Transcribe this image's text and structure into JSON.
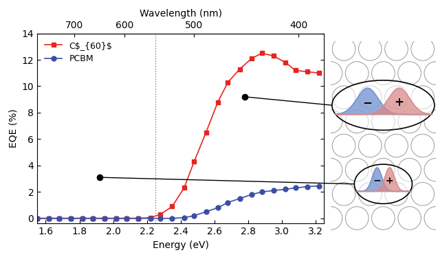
{
  "chart_data": {
    "type": "line",
    "xlabel": "Energy (eV)",
    "ylabel": "EQE (%)",
    "x2label": "Wavelength (nm)",
    "x2ticks": [
      700,
      600,
      500,
      400
    ],
    "x": [
      1.55,
      1.62,
      1.68,
      1.75,
      1.82,
      1.88,
      1.95,
      2.02,
      2.08,
      2.15,
      2.22,
      2.28,
      2.35,
      2.42,
      2.48,
      2.55,
      2.62,
      2.68,
      2.75,
      2.82,
      2.88,
      2.95,
      3.02,
      3.08,
      3.15,
      3.22
    ],
    "series": [
      {
        "name": "C$_{60}$",
        "color": "#e8241f",
        "marker": "square",
        "line_style": "solid",
        "values": [
          0,
          0,
          0,
          0,
          0,
          0,
          0,
          0,
          0,
          0,
          0.05,
          0.3,
          0.9,
          2.3,
          4.3,
          6.5,
          8.8,
          10.3,
          11.3,
          12.1,
          12.5,
          12.3,
          11.8,
          11.2,
          11.1,
          11.0
        ]
      },
      {
        "name": "PCBM",
        "color": "#3b4ea6",
        "marker": "circle",
        "line_style": "solid",
        "values": [
          0,
          0,
          0,
          0,
          0,
          0,
          0,
          0,
          0,
          0,
          0,
          0,
          0,
          0.05,
          0.2,
          0.5,
          0.8,
          1.2,
          1.5,
          1.8,
          2.0,
          2.1,
          2.2,
          2.3,
          2.4,
          2.45
        ]
      }
    ],
    "xlim": [
      1.55,
      3.25
    ],
    "xticks": [
      1.6,
      1.8,
      2.0,
      2.2,
      2.4,
      2.6,
      2.8,
      3.0,
      3.2
    ],
    "ylim": [
      -0.4,
      14
    ],
    "yticks": [
      0,
      2,
      4,
      6,
      8,
      10,
      12,
      14
    ],
    "legend": "upper left",
    "annotations": [
      {
        "type": "vline",
        "x": 2.25,
        "line_style": "dotted"
      }
    ],
    "pointers": [
      {
        "x": 2.78,
        "y": 9.2
      },
      {
        "x": 1.92,
        "y": 3.1
      }
    ],
    "schematic": {
      "negative": "−",
      "positive": "+"
    }
  }
}
